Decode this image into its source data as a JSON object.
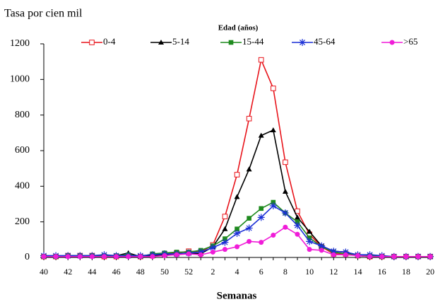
{
  "chart_data": {
    "type": "line",
    "ylabel": "Tasa por cien mil",
    "xlabel": "Semanas",
    "legend_title": "Edad (años)",
    "legend_position": "top",
    "grid": false,
    "categories": [
      "40",
      null,
      "42",
      null,
      "44",
      null,
      "46",
      null,
      "48",
      null,
      "50",
      null,
      "52",
      null,
      "2",
      null,
      "4",
      null,
      "6",
      null,
      "8",
      null,
      "10",
      null,
      "12",
      null,
      "14",
      null,
      "16",
      null,
      "18",
      null,
      "20"
    ],
    "ylim": [
      0,
      1200
    ],
    "yticks": [
      0,
      200,
      400,
      600,
      800,
      1000,
      1200
    ],
    "series": [
      {
        "name": "0-4",
        "color": "#e8141b",
        "marker": "square-open",
        "values": [
          5,
          5,
          10,
          10,
          10,
          5,
          5,
          10,
          5,
          10,
          20,
          25,
          35,
          30,
          70,
          230,
          465,
          780,
          1110,
          950,
          535,
          260,
          130,
          60,
          20,
          20,
          10,
          5,
          5,
          5,
          5,
          5,
          5
        ]
      },
      {
        "name": "5-14",
        "color": "#000000",
        "marker": "triangle",
        "values": [
          5,
          5,
          10,
          10,
          10,
          10,
          10,
          25,
          5,
          10,
          15,
          20,
          25,
          20,
          60,
          160,
          340,
          495,
          685,
          715,
          370,
          225,
          145,
          65,
          35,
          30,
          10,
          5,
          5,
          5,
          5,
          5,
          5
        ]
      },
      {
        "name": "15-44",
        "color": "#1e8a1e",
        "marker": "square",
        "values": [
          5,
          5,
          10,
          10,
          10,
          10,
          10,
          15,
          5,
          20,
          25,
          30,
          30,
          40,
          65,
          105,
          160,
          220,
          275,
          310,
          250,
          200,
          110,
          60,
          30,
          20,
          10,
          10,
          5,
          5,
          5,
          5,
          5
        ]
      },
      {
        "name": "45-64",
        "color": "#1a2fd6",
        "marker": "asterisk",
        "values": [
          10,
          10,
          10,
          10,
          10,
          15,
          10,
          10,
          10,
          15,
          20,
          20,
          25,
          30,
          55,
          85,
          135,
          165,
          225,
          290,
          250,
          180,
          90,
          65,
          35,
          30,
          15,
          15,
          10,
          5,
          5,
          5,
          5
        ]
      },
      {
        "name": ">65",
        "color": "#f01cd8",
        "marker": "circle",
        "values": [
          5,
          5,
          5,
          5,
          5,
          5,
          5,
          5,
          5,
          5,
          10,
          15,
          20,
          15,
          30,
          45,
          60,
          90,
          85,
          125,
          170,
          130,
          45,
          40,
          15,
          15,
          10,
          5,
          5,
          5,
          5,
          5,
          5
        ]
      }
    ]
  }
}
